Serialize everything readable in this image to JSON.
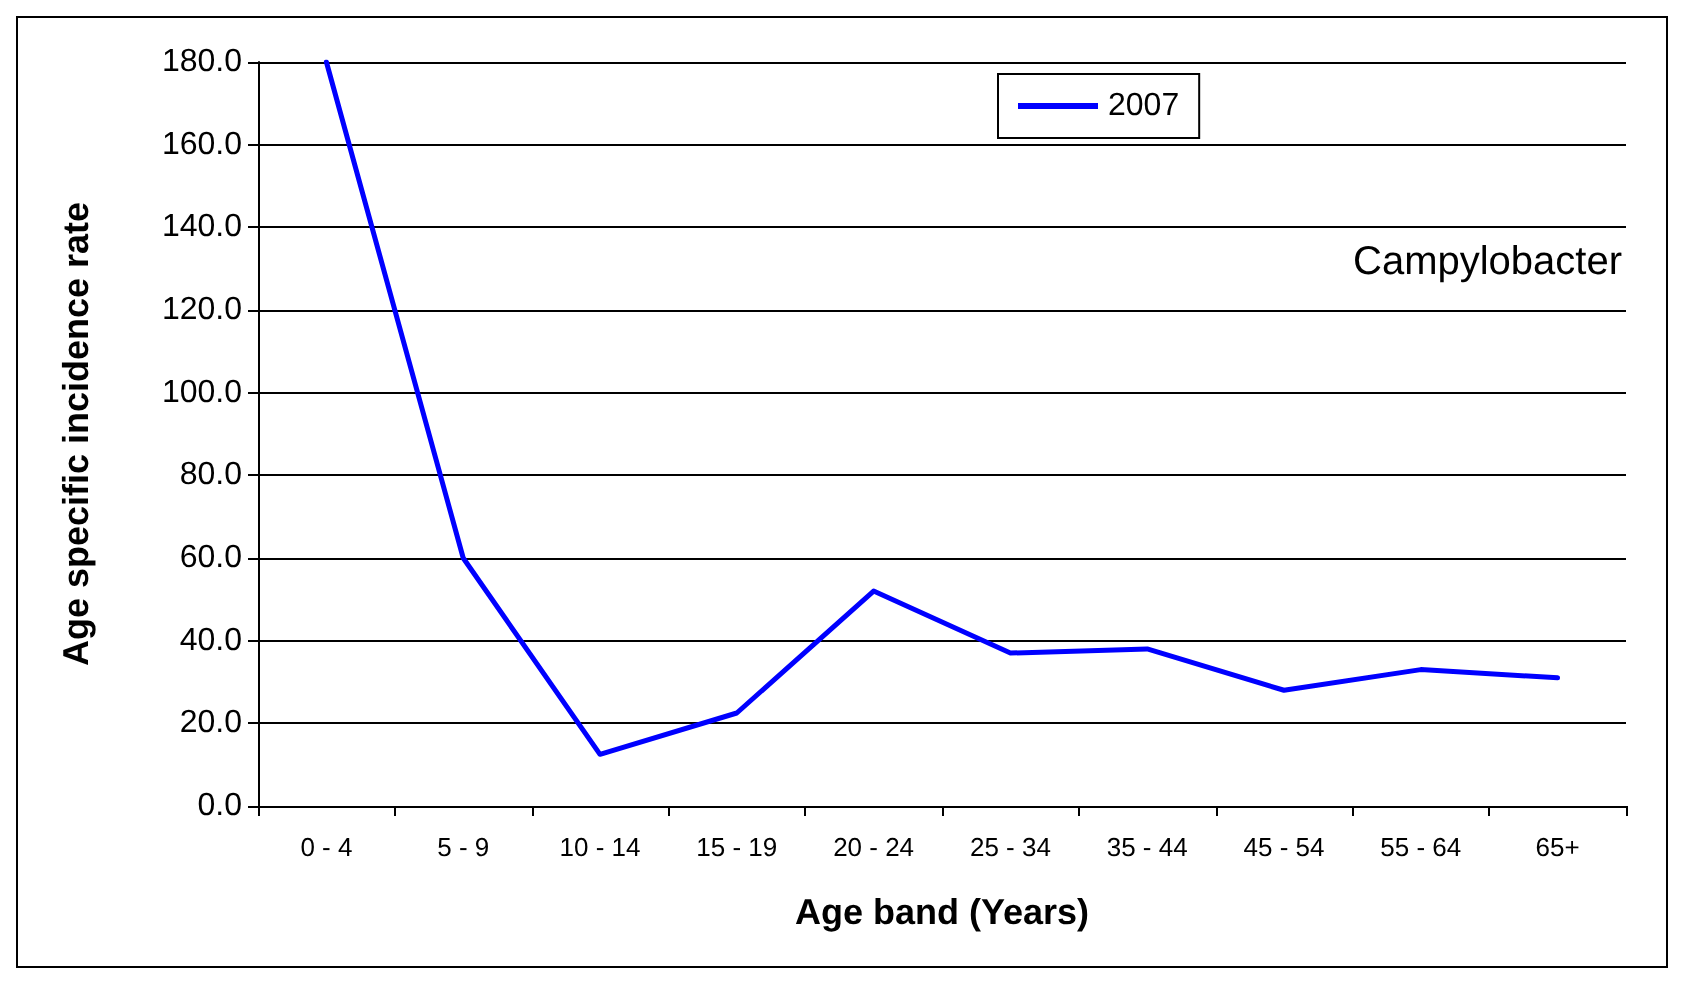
{
  "chart_data": {
    "type": "line",
    "xlabel": "Age band (Years)",
    "ylabel": "Age specific incidence rate",
    "categories": [
      "0 - 4",
      "5 - 9",
      "10 - 14",
      "15 - 19",
      "20 - 24",
      "25 - 34",
      "35 - 44",
      "45 - 54",
      "55 - 64",
      "65+"
    ],
    "series": [
      {
        "name": "2007",
        "color": "#0000ff",
        "values": [
          180,
          60,
          12.5,
          22.5,
          52,
          37,
          38,
          28,
          33,
          31
        ]
      }
    ],
    "ylim": [
      0,
      180
    ],
    "yticks": [
      {
        "value": 0,
        "label": "0.0"
      },
      {
        "value": 20,
        "label": "20.0"
      },
      {
        "value": 40,
        "label": "40.0"
      },
      {
        "value": 60,
        "label": "60.0"
      },
      {
        "value": 80,
        "label": "80.0"
      },
      {
        "value": 100,
        "label": "100.0"
      },
      {
        "value": 120,
        "label": "120.0"
      },
      {
        "value": 140,
        "label": "140.0"
      },
      {
        "value": 160,
        "label": "160.0"
      },
      {
        "value": 180,
        "label": "180.0"
      }
    ],
    "grid": "y",
    "legend": "top",
    "marker": "none",
    "line_style": "solid",
    "annotations": [
      "Campylobacter"
    ]
  }
}
